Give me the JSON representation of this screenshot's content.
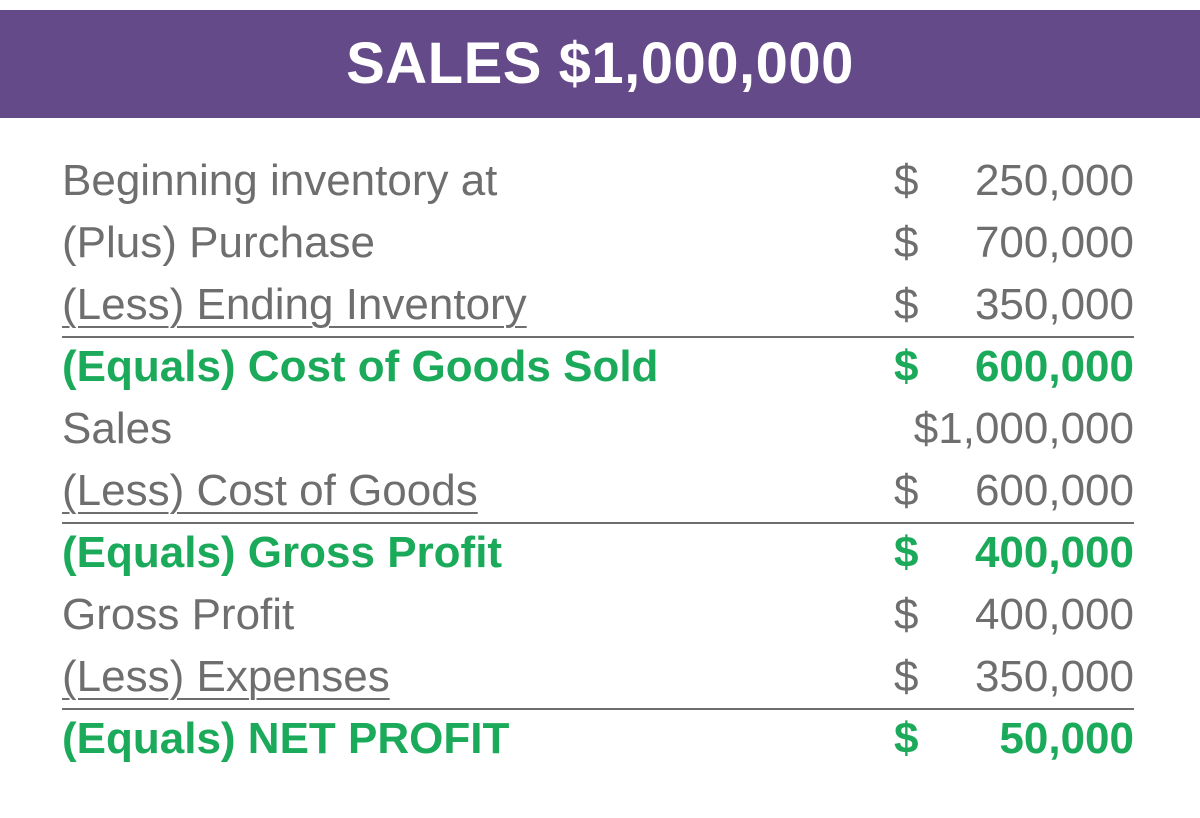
{
  "banner": {
    "title": "SALES $1,000,000",
    "background": "#654a89"
  },
  "colors": {
    "text": "#6e6e6e",
    "total": "#1aaa5a"
  },
  "rows": [
    {
      "label": "Beginning inventory at",
      "currency": "$",
      "value": "250,000",
      "type": "normal"
    },
    {
      "label": "(Plus) Purchase",
      "currency": "$",
      "value": "700,000",
      "type": "normal"
    },
    {
      "label": "(Less) Ending Inventory",
      "currency": "$",
      "value": "350,000",
      "type": "underline"
    },
    {
      "label": "(Equals) Cost of Goods Sold",
      "currency": "$",
      "value": "600,000",
      "type": "total"
    },
    {
      "label": "Sales",
      "currency": "",
      "value": "$1,000,000",
      "type": "normal"
    },
    {
      "label": "(Less) Cost of Goods",
      "currency": "$",
      "value": "600,000",
      "type": "underline"
    },
    {
      "label": "(Equals) Gross Profit",
      "currency": "$",
      "value": "400,000",
      "type": "total"
    },
    {
      "label": "Gross Profit",
      "currency": "$",
      "value": "400,000",
      "type": "normal"
    },
    {
      "label": "(Less) Expenses",
      "currency": "$",
      "value": "350,000",
      "type": "underline"
    },
    {
      "label": "(Equals) NET PROFIT",
      "currency": "$",
      "value": "50,000",
      "type": "total"
    }
  ]
}
